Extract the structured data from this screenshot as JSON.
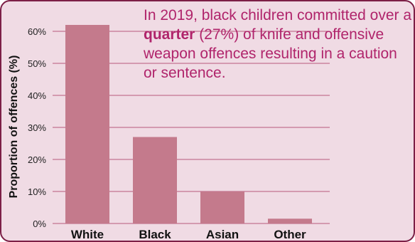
{
  "colors": {
    "bar": "#c47a8c",
    "gridline": "#b85a7c",
    "background": "#f0dbe4",
    "border": "#7c1f46",
    "annotation_text": "#b0246b"
  },
  "annotation": {
    "before": "In 2019, black children committed over a ",
    "emphasis": "quarter",
    "after": " (27%) of knife and offensive weapon offences resulting in a caution or sentence."
  },
  "chart_data": {
    "type": "bar",
    "title": "",
    "xlabel": "",
    "ylabel": "Proportion of offences (%)",
    "categories": [
      "White",
      "Black",
      "Asian",
      "Other"
    ],
    "values": [
      62,
      27,
      10,
      1.5
    ],
    "ylim": [
      0,
      60
    ],
    "yticks": [
      0,
      10,
      20,
      30,
      40,
      50,
      60
    ],
    "ytick_labels": [
      "0%",
      "10%",
      "20%",
      "30%",
      "40%",
      "50%",
      "60%"
    ],
    "grid": true,
    "legend": "none"
  }
}
